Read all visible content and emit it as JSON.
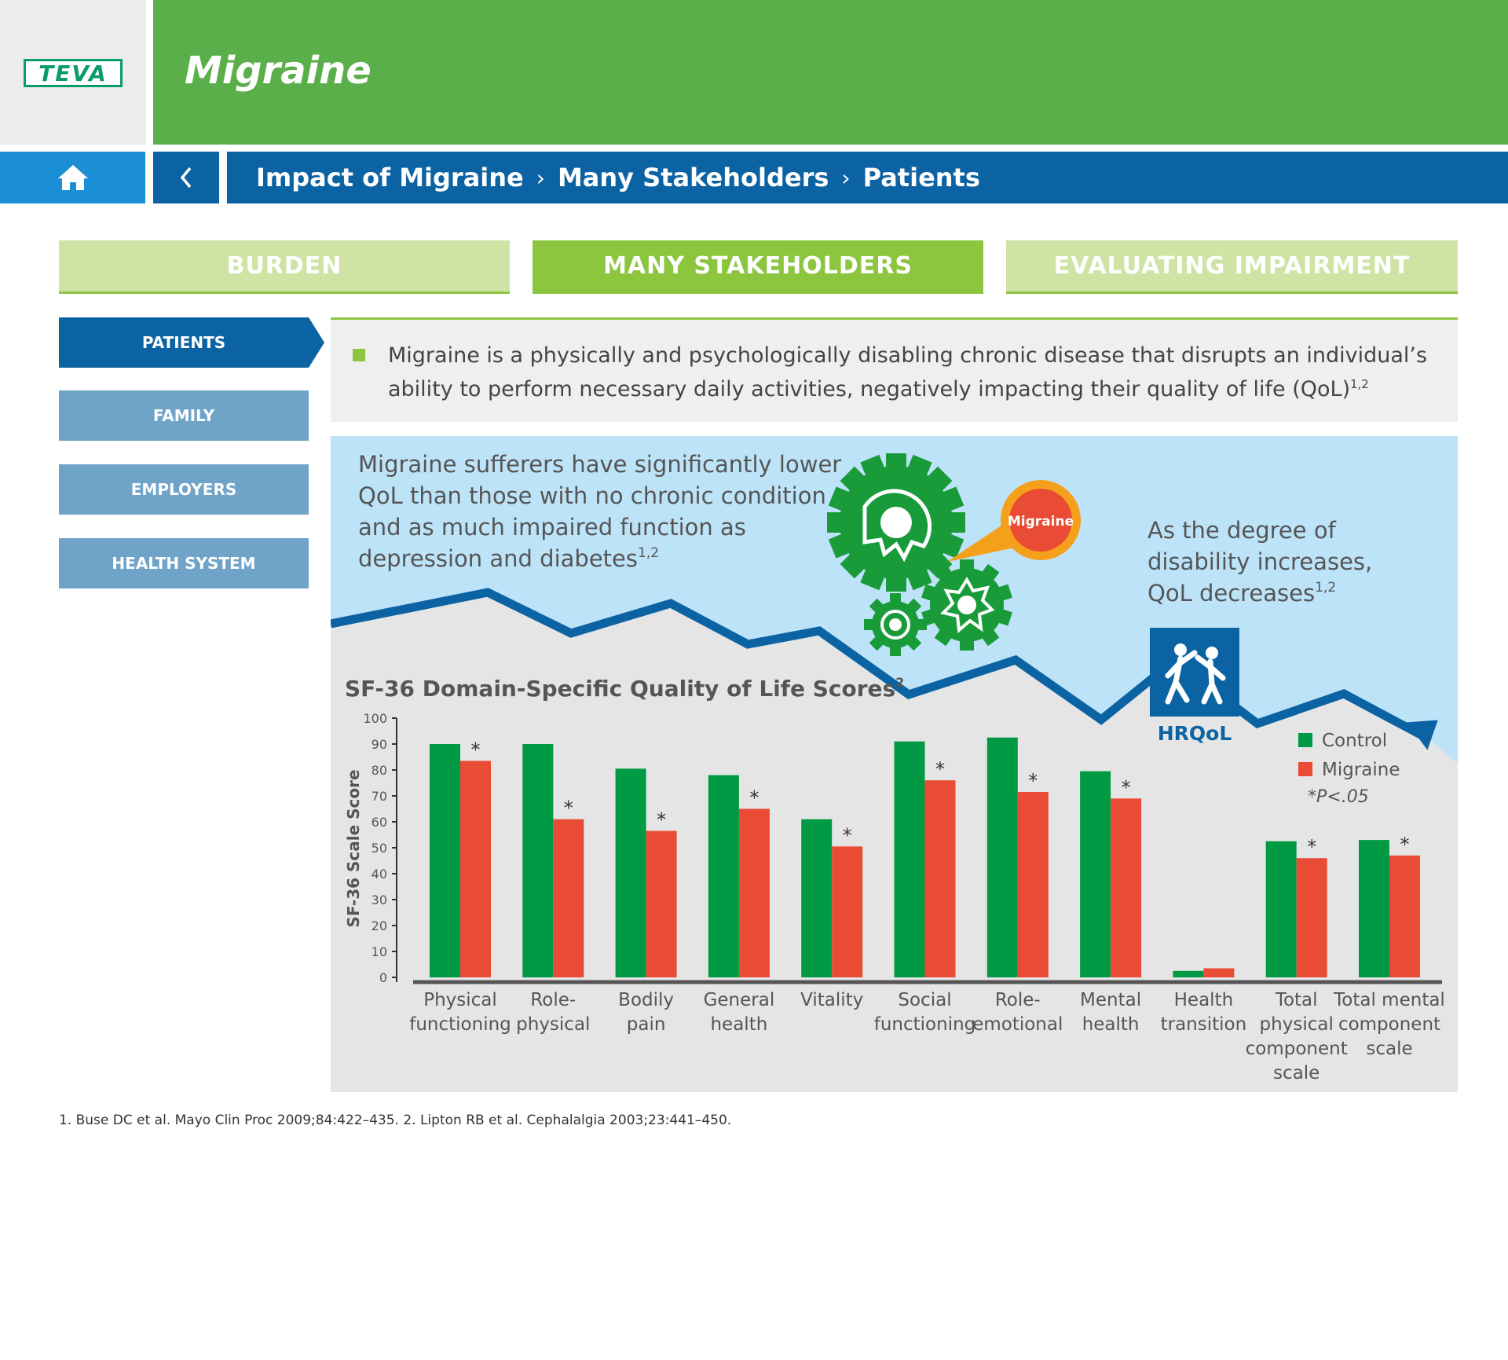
{
  "header": {
    "logo_text": "TEVA",
    "app_title": "Migraine"
  },
  "nav": {
    "home_icon": "home-icon",
    "back_icon": "chevron-left-icon",
    "breadcrumb": [
      "Impact of Migraine",
      "Many Stakeholders",
      "Patients"
    ]
  },
  "tabs": [
    {
      "label": "BURDEN",
      "active": false
    },
    {
      "label": "MANY STAKEHOLDERS",
      "active": true
    },
    {
      "label": "EVALUATING IMPAIRMENT",
      "active": false
    }
  ],
  "sidebar": {
    "items": [
      {
        "label": "PATIENTS",
        "active": true
      },
      {
        "label": "FAMILY",
        "active": false
      },
      {
        "label": "EMPLOYERS",
        "active": false
      },
      {
        "label": "HEALTH SYSTEM",
        "active": false
      }
    ]
  },
  "intro": {
    "text": "Migraine is a physically and psychologically disabling chronic disease that disrupts an individual’s ability to perform necessary daily activities, negatively impacting their quality of life (QoL)",
    "sup": "1,2"
  },
  "infographic": {
    "left_text": [
      "Migraine sufferers have significantly lower",
      "QoL than those with no chronic condition",
      "and as much impaired function as",
      "depression and diabetes"
    ],
    "left_sup": "1,2",
    "bubble_label": "Migraine",
    "right_text": [
      "As the degree of",
      "disability increases,",
      "QoL decreases"
    ],
    "right_sup": "1,2",
    "hrqol_label": "HRQoL"
  },
  "chart_data": {
    "type": "bar",
    "title": "SF-36 Domain-Specific Quality of Life Scores",
    "title_sup": "2",
    "ylabel": "SF-36 Scale Score",
    "ylim": [
      0,
      100
    ],
    "yticks": [
      0,
      10,
      20,
      30,
      40,
      50,
      60,
      70,
      80,
      90,
      100
    ],
    "categories": [
      [
        "Physical",
        "functioning"
      ],
      [
        "Role-",
        "physical"
      ],
      [
        "Bodily",
        "pain"
      ],
      [
        "General",
        "health"
      ],
      [
        "Vitality"
      ],
      [
        "Social",
        "functioning"
      ],
      [
        "Role-",
        "emotional"
      ],
      [
        "Mental",
        "health"
      ],
      [
        "Health",
        "transition"
      ],
      [
        "Total",
        "physical",
        "component",
        "scale"
      ],
      [
        "Total mental",
        "component",
        "scale"
      ]
    ],
    "series": [
      {
        "name": "Control",
        "color": "#009a44",
        "values": [
          90,
          90,
          80.5,
          78,
          61,
          91,
          92.5,
          79.5,
          2.5,
          52.5,
          53
        ]
      },
      {
        "name": "Migraine",
        "color": "#e94b35",
        "values": [
          83.5,
          61,
          56.5,
          65,
          50.5,
          76,
          71.5,
          69,
          3.5,
          46,
          47
        ]
      }
    ],
    "significant": [
      true,
      true,
      true,
      true,
      true,
      true,
      true,
      true,
      false,
      true,
      true
    ],
    "sig_marker": "*",
    "sig_note": "*P<.05",
    "legend_position": "right"
  },
  "footnote": "1. Buse DC et al. Mayo Clin Proc 2009;84:422–435. 2. Lipton RB et al. Cephalalgia 2003;23:441–450.",
  "colors": {
    "brand_green": "#5aaf4b",
    "tab_active": "#8cc63f",
    "tab_inactive": "#cfe3a4",
    "nav_blue": "#0c63a3",
    "home_blue": "#1b8fd6",
    "sky": "#bde3f8",
    "ground": "#e5e5e5",
    "gear_green": "#1a9b3a"
  }
}
